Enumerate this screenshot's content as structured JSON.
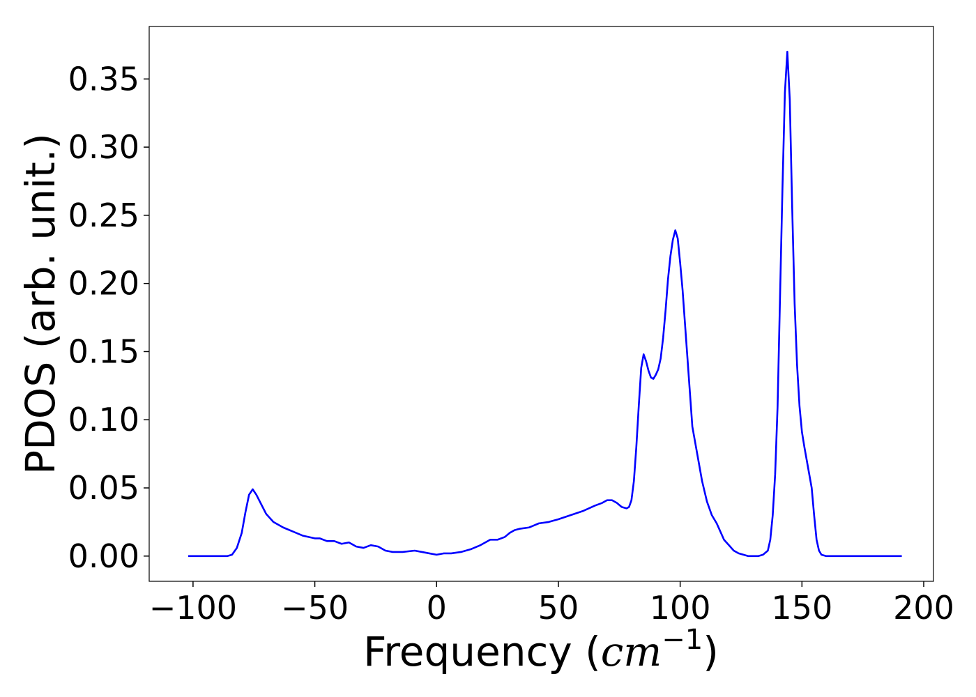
{
  "chart_data": {
    "type": "line",
    "title": "",
    "xlabel_text": "Frequency (",
    "xlabel_unit": "cm",
    "xlabel_exp": "−1",
    "xlabel_close": ")",
    "ylabel": "PDOS (arb. unit.)",
    "xlim": [
      -118,
      204
    ],
    "ylim": [
      -0.0185,
      0.3885
    ],
    "grid": false,
    "line_color": "#0000ff",
    "x_ticks": [
      -100,
      -50,
      0,
      50,
      100,
      150,
      200
    ],
    "x_tick_labels": [
      "−100",
      "−50",
      "0",
      "50",
      "100",
      "150",
      "200"
    ],
    "y_ticks": [
      0.0,
      0.05,
      0.1,
      0.15,
      0.2,
      0.25,
      0.3,
      0.35
    ],
    "y_tick_labels": [
      "0.00",
      "0.05",
      "0.10",
      "0.15",
      "0.20",
      "0.25",
      "0.30",
      "0.35"
    ],
    "series": [
      {
        "x": [
          -102,
          -95,
          -90,
          -86,
          -84,
          -82,
          -80,
          -78.5,
          -77,
          -75.5,
          -74,
          -72,
          -70,
          -67,
          -63,
          -59,
          -55,
          -50,
          -48,
          -45,
          -42,
          -39,
          -36,
          -33,
          -30,
          -27,
          -24,
          -21,
          -18,
          -14,
          -9,
          -6,
          -3,
          0,
          3,
          6,
          10,
          14,
          18,
          22,
          25,
          28,
          30,
          32,
          34,
          38,
          42,
          46,
          50,
          55,
          60,
          65,
          68,
          70,
          72,
          74,
          76,
          78,
          79,
          80,
          81,
          82,
          83,
          84,
          85,
          86,
          87,
          88,
          89,
          90,
          91,
          92,
          93,
          94,
          95,
          96,
          97,
          98,
          99,
          100,
          101,
          102,
          103,
          104,
          105,
          107,
          109,
          111,
          113,
          115,
          116,
          117,
          118,
          120,
          122,
          124,
          126,
          128,
          130,
          132,
          134,
          136,
          137,
          138,
          139,
          140,
          141,
          142,
          143,
          144,
          145,
          146,
          147,
          148,
          149,
          150,
          151,
          152,
          153,
          154,
          155,
          156,
          157,
          158,
          160,
          162,
          164,
          166,
          167,
          168,
          169,
          170,
          171,
          173,
          176,
          180,
          191
        ],
        "y": [
          0.0,
          0.0,
          0.0,
          0.0,
          0.001,
          0.006,
          0.017,
          0.032,
          0.045,
          0.049,
          0.045,
          0.038,
          0.031,
          0.025,
          0.021,
          0.018,
          0.015,
          0.013,
          0.013,
          0.011,
          0.011,
          0.009,
          0.01,
          0.007,
          0.006,
          0.008,
          0.007,
          0.004,
          0.003,
          0.003,
          0.004,
          0.003,
          0.002,
          0.001,
          0.002,
          0.002,
          0.003,
          0.005,
          0.008,
          0.012,
          0.012,
          0.014,
          0.017,
          0.019,
          0.02,
          0.021,
          0.024,
          0.025,
          0.027,
          0.03,
          0.033,
          0.037,
          0.039,
          0.041,
          0.041,
          0.039,
          0.036,
          0.035,
          0.036,
          0.041,
          0.055,
          0.08,
          0.11,
          0.138,
          0.148,
          0.143,
          0.136,
          0.131,
          0.13,
          0.133,
          0.137,
          0.145,
          0.16,
          0.18,
          0.203,
          0.22,
          0.232,
          0.239,
          0.233,
          0.215,
          0.195,
          0.17,
          0.145,
          0.12,
          0.095,
          0.075,
          0.055,
          0.04,
          0.03,
          0.024,
          0.02,
          0.016,
          0.012,
          0.008,
          0.004,
          0.002,
          0.001,
          0.0,
          0.0,
          0.0,
          0.001,
          0.004,
          0.012,
          0.03,
          0.06,
          0.11,
          0.19,
          0.27,
          0.34,
          0.37,
          0.335,
          0.255,
          0.185,
          0.14,
          0.11,
          0.091,
          0.08,
          0.07,
          0.06,
          0.05,
          0.03,
          0.012,
          0.004,
          0.001,
          0.0,
          0.0,
          0.0,
          0.0,
          0.0,
          0.0,
          0.0,
          0.0,
          0.0,
          0.0,
          0.0,
          0.0,
          0.0
        ]
      }
    ]
  }
}
